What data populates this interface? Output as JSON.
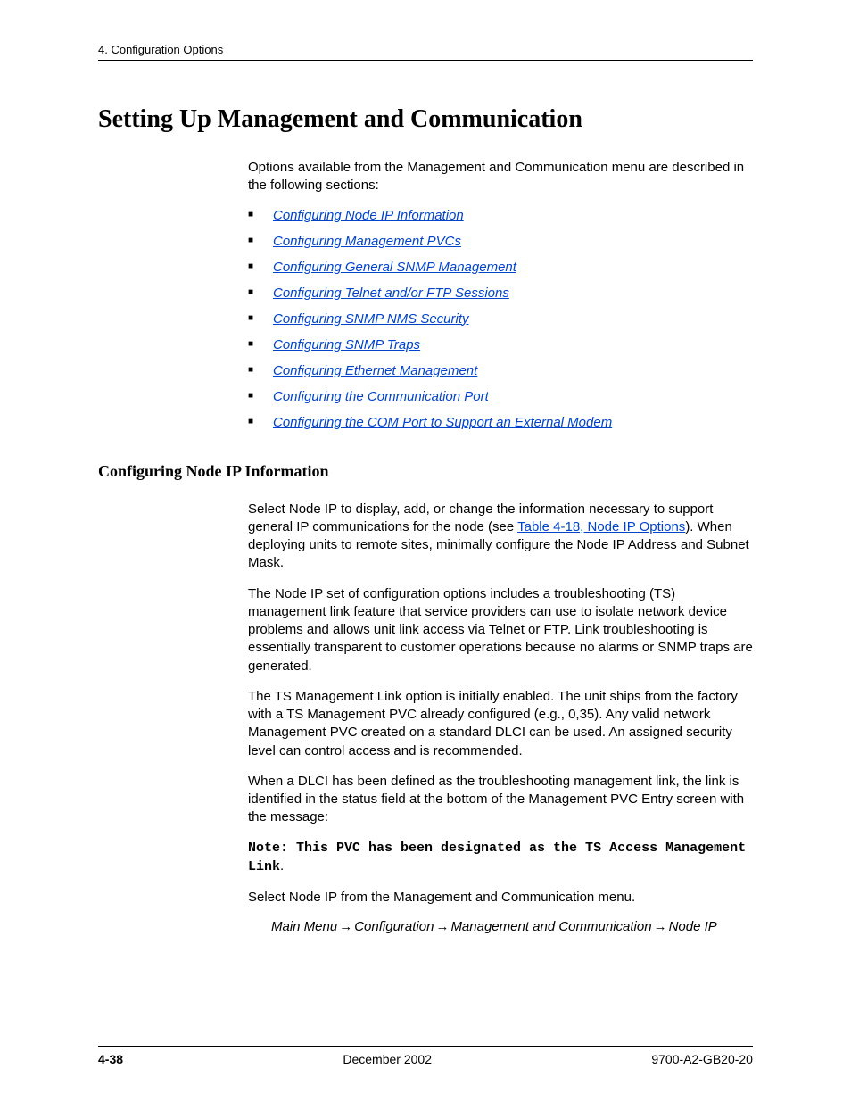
{
  "header": {
    "running": "4. Configuration Options"
  },
  "title": "Setting Up Management and Communication",
  "intro": "Options available from the Management and Communication menu are described in the following sections:",
  "links": [
    "Configuring Node IP Information",
    "Configuring Management PVCs",
    "Configuring General SNMP Management",
    "Configuring Telnet and/or FTP Sessions",
    "Configuring SNMP NMS Security",
    "Configuring SNMP Traps",
    "Configuring Ethernet Management",
    "Configuring the Communication Port",
    "Configuring the COM Port to Support an External Modem"
  ],
  "section": {
    "heading": "Configuring Node IP Information",
    "p1_a": "Select Node IP to display, add, or change the information necessary to support general IP communications for the node (see ",
    "p1_link": "Table 4-18, Node IP Options",
    "p1_b": "). When deploying units to remote sites, minimally configure the Node IP Address and Subnet Mask.",
    "p2": "The Node IP set of configuration options includes a troubleshooting (TS) management link feature that service providers can use to isolate network device problems and allows unit link access via Telnet or FTP. Link troubleshooting is essentially transparent to customer operations because no alarms or SNMP traps are generated.",
    "p3": "The TS Management Link option is initially enabled. The unit ships from the factory with a TS Management PVC already configured (e.g., 0,35). Any valid network Management PVC created on a standard DLCI can be used. An assigned security level can control access and is recommended.",
    "p4": "When a DLCI has been defined as the troubleshooting management link, the link is identified in the status field at the bottom of the Management PVC Entry screen with the message:",
    "note_a": "Note: This PVC has been designated as the TS Access Management Link",
    "note_period": ".",
    "p5": "Select Node IP from the Management and Communication menu.",
    "path": {
      "a": "Main Menu",
      "b": "Configuration",
      "c": "Management and Communication",
      "d": "Node IP"
    }
  },
  "footer": {
    "page": "4-38",
    "date": "December 2002",
    "doc": "9700-A2-GB20-20"
  },
  "colors": {
    "link": "#0044cc",
    "text": "#000000",
    "background": "#ffffff"
  },
  "fonts": {
    "heading_family": "Times New Roman",
    "body_family": "Arial",
    "mono_family": "Courier New",
    "h1_size_pt": 21,
    "h2_size_pt": 14,
    "body_size_pt": 11
  }
}
